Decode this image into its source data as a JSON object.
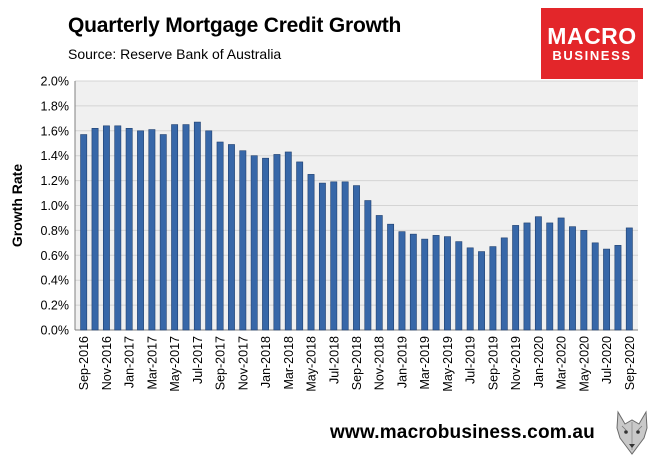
{
  "header": {
    "title": "Quarterly Mortgage Credit Growth",
    "subtitle": "Source: Reserve Bank of Australia"
  },
  "logo": {
    "line1": "MACRO",
    "line2": "BUSINESS",
    "color": "#e3262a"
  },
  "footer": {
    "website": "www.macrobusiness.com.au",
    "mascot_icon": "wolf-head-icon"
  },
  "colors": {
    "bar": "#3767a8",
    "bar_edge": "#1f3f6e",
    "plot_bg": "#f0f0f0",
    "grid": "#d4d4d4"
  },
  "chart_data": {
    "type": "bar",
    "title": "Quarterly Mortgage Credit Growth",
    "xlabel": "",
    "ylabel": "Growth Rate",
    "ylim": [
      0,
      2.0
    ],
    "yticks": [
      "0.0%",
      "0.2%",
      "0.4%",
      "0.6%",
      "0.8%",
      "1.0%",
      "1.2%",
      "1.4%",
      "1.6%",
      "1.8%",
      "2.0%"
    ],
    "grid": true,
    "legend": "none",
    "categories": [
      "Sep-2016",
      "Oct-2016",
      "Nov-2016",
      "Dec-2016",
      "Jan-2017",
      "Feb-2017",
      "Mar-2017",
      "Apr-2017",
      "May-2017",
      "Jun-2017",
      "Jul-2017",
      "Aug-2017",
      "Sep-2017",
      "Oct-2017",
      "Nov-2017",
      "Dec-2017",
      "Jan-2018",
      "Feb-2018",
      "Mar-2018",
      "Apr-2018",
      "May-2018",
      "Jun-2018",
      "Jul-2018",
      "Aug-2018",
      "Sep-2018",
      "Oct-2018",
      "Nov-2018",
      "Dec-2018",
      "Jan-2019",
      "Feb-2019",
      "Mar-2019",
      "Apr-2019",
      "May-2019",
      "Jun-2019",
      "Jul-2019",
      "Aug-2019",
      "Sep-2019",
      "Oct-2019",
      "Nov-2019",
      "Dec-2019",
      "Jan-2020",
      "Feb-2020",
      "Mar-2020",
      "Apr-2020",
      "May-2020",
      "Jun-2020",
      "Jul-2020",
      "Aug-2020",
      "Sep-2020"
    ],
    "xtick_labels": [
      "Sep-2016",
      "Nov-2016",
      "Jan-2017",
      "Mar-2017",
      "May-2017",
      "Jul-2017",
      "Sep-2017",
      "Nov-2017",
      "Jan-2018",
      "Mar-2018",
      "May-2018",
      "Jul-2018",
      "Sep-2018",
      "Nov-2018",
      "Jan-2019",
      "Mar-2019",
      "May-2019",
      "Jul-2019",
      "Sep-2019",
      "Nov-2019",
      "Jan-2020",
      "Mar-2020",
      "May-2020",
      "Jul-2020",
      "Sep-2020"
    ],
    "values": [
      1.57,
      1.62,
      1.64,
      1.64,
      1.62,
      1.6,
      1.61,
      1.57,
      1.65,
      1.65,
      1.67,
      1.6,
      1.51,
      1.49,
      1.44,
      1.4,
      1.38,
      1.41,
      1.43,
      1.35,
      1.25,
      1.18,
      1.19,
      1.19,
      1.16,
      1.04,
      0.92,
      0.85,
      0.79,
      0.77,
      0.73,
      0.76,
      0.75,
      0.71,
      0.66,
      0.63,
      0.67,
      0.74,
      0.84,
      0.86,
      0.91,
      0.86,
      0.9,
      0.83,
      0.8,
      0.7,
      0.65,
      0.68,
      0.82
    ]
  }
}
